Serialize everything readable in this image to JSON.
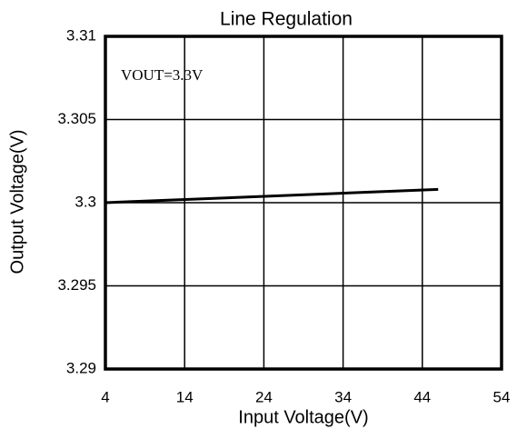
{
  "chart_data": {
    "type": "line",
    "title": "Line Regulation",
    "x_label": "Input Voltage(V)",
    "y_label": "Output Voltage(V)",
    "annotation": "VOUT=3.3V",
    "x": [
      4,
      46
    ],
    "series": [
      {
        "name": null,
        "color": "#000000",
        "values": [
          3.3,
          3.3008
        ]
      }
    ],
    "xlim": [
      4,
      54
    ],
    "xticks": [
      4,
      14,
      24,
      34,
      44,
      54
    ],
    "ylim": [
      3.29,
      3.31
    ],
    "yticks": [
      3.29,
      3.295,
      3.3,
      3.305,
      3.31
    ],
    "grid": true
  }
}
